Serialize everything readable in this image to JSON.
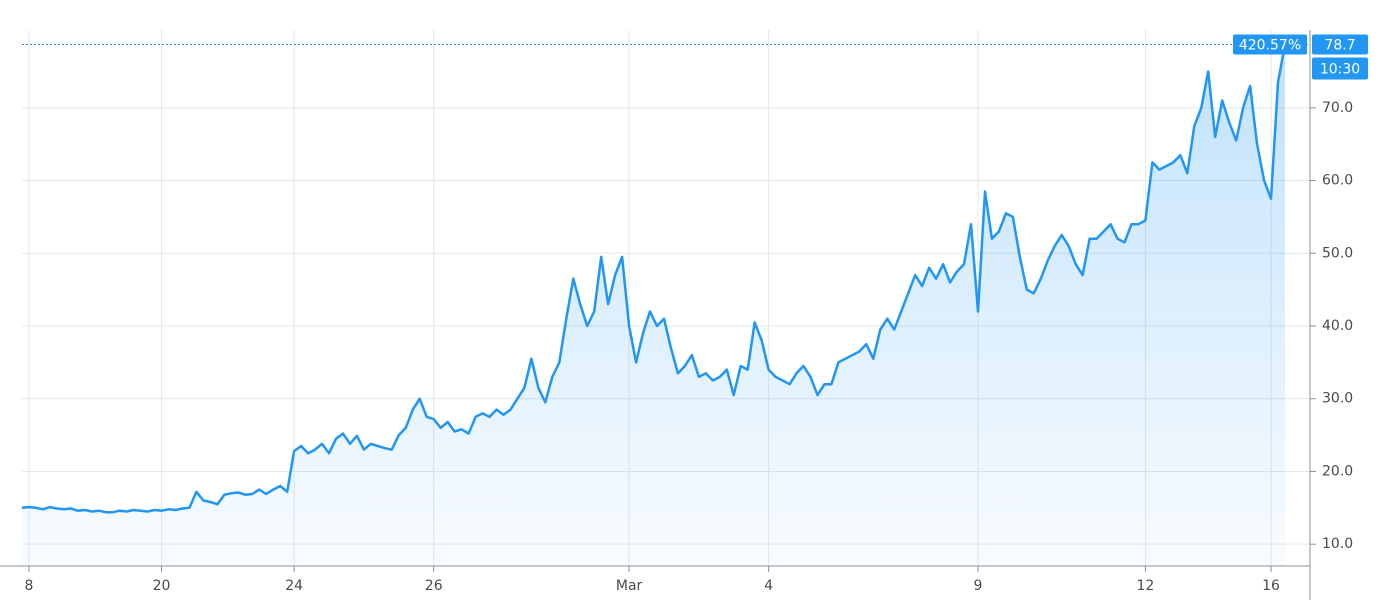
{
  "chart_data": {
    "type": "area",
    "categories": [
      null,
      "8",
      null,
      null,
      null,
      null,
      null,
      null,
      null,
      null,
      null,
      null,
      null,
      null,
      null,
      null,
      null,
      null,
      null,
      null,
      "20",
      null,
      null,
      null,
      null,
      null,
      null,
      null,
      null,
      null,
      null,
      null,
      null,
      null,
      null,
      null,
      null,
      null,
      null,
      "24",
      null,
      null,
      null,
      null,
      null,
      null,
      null,
      null,
      null,
      null,
      null,
      null,
      null,
      null,
      null,
      null,
      null,
      null,
      null,
      "26",
      null,
      null,
      null,
      null,
      null,
      null,
      null,
      null,
      null,
      null,
      null,
      null,
      null,
      null,
      null,
      null,
      null,
      null,
      null,
      null,
      null,
      null,
      null,
      null,
      null,
      null,
      null,
      "Mar",
      null,
      null,
      null,
      null,
      null,
      null,
      null,
      null,
      null,
      null,
      null,
      null,
      null,
      null,
      null,
      null,
      null,
      null,
      null,
      "4",
      null,
      null,
      null,
      null,
      null,
      null,
      null,
      null,
      null,
      null,
      null,
      null,
      null,
      null,
      null,
      null,
      null,
      null,
      null,
      null,
      null,
      null,
      null,
      null,
      null,
      null,
      null,
      null,
      null,
      "9",
      null,
      null,
      null,
      null,
      null,
      null,
      null,
      null,
      null,
      null,
      null,
      null,
      null,
      null,
      null,
      null,
      null,
      null,
      null,
      null,
      null,
      null,
      null,
      "12",
      null,
      null,
      null,
      null,
      null,
      null,
      null,
      null,
      null,
      null,
      null,
      null,
      null,
      null,
      null,
      null,
      null,
      "16",
      null,
      null
    ],
    "series": [
      {
        "color": "#2196f3",
        "values": [
          15.0,
          15.1,
          15.0,
          14.8,
          15.1,
          14.9,
          14.8,
          14.9,
          14.6,
          14.7,
          14.5,
          14.6,
          14.4,
          14.4,
          14.6,
          14.5,
          14.7,
          14.6,
          14.5,
          14.7,
          14.6,
          14.8,
          14.7,
          14.9,
          15.0,
          17.2,
          16.0,
          15.8,
          15.5,
          16.8,
          17.0,
          17.1,
          16.8,
          16.9,
          17.5,
          16.9,
          17.5,
          18.0,
          17.2,
          22.8,
          23.5,
          22.5,
          23.0,
          23.8,
          22.5,
          24.5,
          25.2,
          23.8,
          24.9,
          23.0,
          23.8,
          23.5,
          23.2,
          23.0,
          25.0,
          26.0,
          28.5,
          30.0,
          27.5,
          27.2,
          26.0,
          26.8,
          25.5,
          25.8,
          25.2,
          27.5,
          28.0,
          27.5,
          28.5,
          27.8,
          28.5,
          30.0,
          31.5,
          35.5,
          31.5,
          29.5,
          33.0,
          35.0,
          41.0,
          46.5,
          43.0,
          40.0,
          42.0,
          49.5,
          43.0,
          47.0,
          49.5,
          40.0,
          35.0,
          39.0,
          42.0,
          40.0,
          41.0,
          37.0,
          33.5,
          34.5,
          36.0,
          33.0,
          33.5,
          32.5,
          33.0,
          34.0,
          30.5,
          34.5,
          34.0,
          40.5,
          38.0,
          34.0,
          33.0,
          32.5,
          32.0,
          33.5,
          34.5,
          33.0,
          30.5,
          32.0,
          32.0,
          35.0,
          35.5,
          36.0,
          36.5,
          37.5,
          35.5,
          39.5,
          41.0,
          39.5,
          42.0,
          44.5,
          47.0,
          45.5,
          48.0,
          46.5,
          48.5,
          46.0,
          47.5,
          48.5,
          54.0,
          42.0,
          58.5,
          52.0,
          53.0,
          55.5,
          55.0,
          49.5,
          45.0,
          44.5,
          46.5,
          49.0,
          51.0,
          52.5,
          51.0,
          48.5,
          47.0,
          52.0,
          52.0,
          53.0,
          54.0,
          52.0,
          51.5,
          54.0,
          54.0,
          54.5,
          62.5,
          61.5,
          62.0,
          62.5,
          63.5,
          61.0,
          67.5,
          70.0,
          75.0,
          66.0,
          71.0,
          68.0,
          65.5,
          70.0,
          73.0,
          65.0,
          60.0,
          57.5,
          73.5,
          78.7
        ]
      }
    ],
    "ylim": [
      7,
      80.7
    ],
    "yticks": [
      {
        "value": 10,
        "label": "10.0"
      },
      {
        "value": 20,
        "label": "20.0"
      },
      {
        "value": 30,
        "label": "30.0"
      },
      {
        "value": 40,
        "label": "40.0"
      },
      {
        "value": 50,
        "label": "50.0"
      },
      {
        "value": 60,
        "label": "60.0"
      },
      {
        "value": 70,
        "label": "70.0"
      }
    ],
    "grid": true,
    "price_label": {
      "value": 78.7,
      "label": "78.7"
    },
    "change_label": "420.57%",
    "time_label": "10:30"
  }
}
